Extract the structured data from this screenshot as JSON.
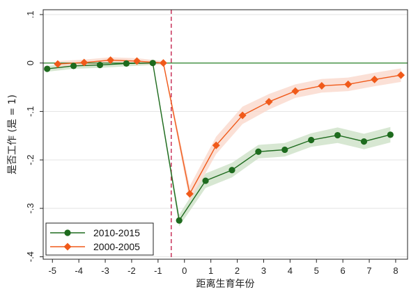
{
  "chart_data": {
    "type": "line",
    "title": "",
    "xlabel": "距离生育年份",
    "ylabel": "是否工作 (是 = 1)",
    "xlim": [
      -5.35,
      8.45
    ],
    "ylim": [
      -0.405,
      0.11
    ],
    "x_ticks": [
      -5,
      -4,
      -3,
      -2,
      -1,
      0,
      1,
      2,
      3,
      4,
      5,
      6,
      7,
      8
    ],
    "x_tick_labels": [
      "-5",
      "-4",
      "-3",
      "-2",
      "-1",
      "0",
      "1",
      "2",
      "3",
      "4",
      "5",
      "6",
      "7",
      "8"
    ],
    "y_ticks": [
      0.1,
      0,
      -0.1,
      -0.2,
      -0.3,
      -0.4
    ],
    "y_tick_labels": [
      ".1",
      "0",
      "-.1",
      "-.2",
      "-.3",
      "-.4"
    ],
    "reference_hline": 0,
    "reference_vline": -0.5,
    "grid": true,
    "legend_position": "bottom-left",
    "series": [
      {
        "name": "2010-2015",
        "marker": "circle",
        "color": "#1e6b1e",
        "band_color": "#c9dfc3",
        "x": [
          -5.2,
          -4.2,
          -3.2,
          -2.2,
          -1.2,
          -0.2,
          0.8,
          1.8,
          2.8,
          3.8,
          4.8,
          5.8,
          6.8,
          7.8
        ],
        "y": [
          -0.012,
          -0.006,
          -0.004,
          -0.001,
          0.0,
          -0.325,
          -0.243,
          -0.221,
          -0.183,
          -0.179,
          -0.159,
          -0.149,
          -0.162,
          -0.148
        ],
        "ci_lower": [
          -0.018,
          -0.012,
          -0.01,
          -0.007,
          -0.004,
          -0.337,
          -0.258,
          -0.236,
          -0.197,
          -0.193,
          -0.173,
          -0.165,
          -0.178,
          -0.164
        ],
        "ci_upper": [
          -0.006,
          0.0,
          0.002,
          0.005,
          0.004,
          -0.313,
          -0.228,
          -0.206,
          -0.169,
          -0.165,
          -0.145,
          -0.133,
          -0.146,
          -0.132
        ]
      },
      {
        "name": "2000-2005",
        "marker": "diamond",
        "color": "#f05a1a",
        "band_color": "#f9d6c8",
        "x": [
          -4.8,
          -3.8,
          -2.8,
          -1.8,
          -0.8,
          0.2,
          1.2,
          2.2,
          3.2,
          4.2,
          5.2,
          6.2,
          7.2,
          8.2
        ],
        "y": [
          -0.002,
          0.001,
          0.006,
          0.004,
          0.0,
          -0.27,
          -0.17,
          -0.108,
          -0.08,
          -0.058,
          -0.047,
          -0.044,
          -0.034,
          -0.025
        ],
        "ci_lower": [
          -0.008,
          -0.005,
          0.0,
          -0.002,
          -0.004,
          -0.286,
          -0.188,
          -0.126,
          -0.096,
          -0.072,
          -0.061,
          -0.058,
          -0.048,
          -0.039
        ],
        "ci_upper": [
          0.004,
          0.007,
          0.012,
          0.01,
          0.004,
          -0.254,
          -0.152,
          -0.09,
          -0.064,
          -0.044,
          -0.033,
          -0.03,
          -0.02,
          -0.011
        ]
      }
    ]
  }
}
